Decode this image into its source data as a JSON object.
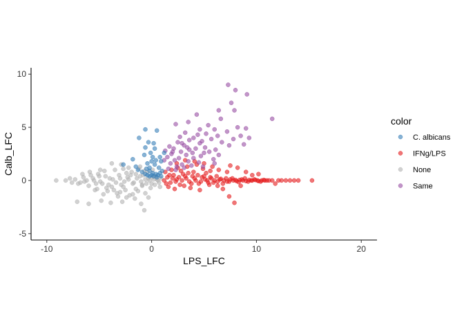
{
  "chart_data": {
    "type": "scatter",
    "title": "",
    "xlabel": "LPS_LFC",
    "ylabel": "Calb_LFC",
    "xlim": [
      -11.5,
      21.5
    ],
    "ylim": [
      -5.6,
      10.6
    ],
    "xticks": [
      -10,
      0,
      10,
      20
    ],
    "yticks": [
      -5,
      0,
      5,
      10
    ],
    "xtick_labels": [
      "-10",
      "0",
      "10",
      "20"
    ],
    "ytick_labels": [
      "-5",
      "0",
      "5",
      "10"
    ],
    "grid": false,
    "legend": {
      "title": "color",
      "placement": "right",
      "entries": [
        "C. albicans",
        "IFNg/LPS",
        "None",
        "Same"
      ]
    },
    "point_opacity": 0.6,
    "series": [
      {
        "name": "C. albicans",
        "color": "#377EB8",
        "points": [
          [
            -0.6,
            4.8
          ],
          [
            0.5,
            4.7
          ],
          [
            -1.2,
            4.0
          ],
          [
            -0.3,
            3.6
          ],
          [
            0.3,
            3.0
          ],
          [
            -0.7,
            2.4
          ],
          [
            -1.8,
            2.0
          ],
          [
            -1.5,
            1.3
          ],
          [
            -1.3,
            1.0
          ],
          [
            -0.4,
            1.6
          ],
          [
            0.0,
            1.8
          ],
          [
            -0.1,
            2.6
          ],
          [
            -0.6,
            3.1
          ],
          [
            0.2,
            3.5
          ],
          [
            -0.2,
            1.2
          ],
          [
            -0.2,
            0.9
          ],
          [
            -0.5,
            1.1
          ],
          [
            0.3,
            1.5
          ],
          [
            0.4,
            1.9
          ],
          [
            0.7,
            1.2
          ],
          [
            0.9,
            1.8
          ],
          [
            -2.7,
            1.5
          ],
          [
            -0.9,
            0.8
          ],
          [
            -0.6,
            0.6
          ],
          [
            -0.4,
            0.5
          ],
          [
            -0.2,
            0.4
          ],
          [
            0.0,
            0.5
          ],
          [
            0.2,
            0.4
          ],
          [
            0.4,
            0.6
          ],
          [
            0.6,
            0.5
          ],
          [
            0.8,
            0.7
          ],
          [
            0.1,
            0.7
          ],
          [
            0.9,
            0.4
          ],
          [
            0.5,
            0.3
          ],
          [
            1.0,
            0.9
          ],
          [
            1.2,
            2.6
          ],
          [
            0.8,
            2.2
          ],
          [
            0.1,
            2.2
          ]
        ]
      },
      {
        "name": "IFNg/LPS",
        "color": "#E41A1C",
        "points": [
          [
            1.2,
            0.0
          ],
          [
            1.5,
            0.3
          ],
          [
            1.8,
            -0.2
          ],
          [
            2.1,
            0.5
          ],
          [
            2.4,
            0.1
          ],
          [
            2.7,
            -0.4
          ],
          [
            3.0,
            0.6
          ],
          [
            3.3,
            0.2
          ],
          [
            3.6,
            -0.1
          ],
          [
            3.9,
            0.4
          ],
          [
            4.2,
            0.0
          ],
          [
            4.5,
            -0.3
          ],
          [
            4.8,
            0.3
          ],
          [
            5.1,
            0.1
          ],
          [
            5.4,
            -0.2
          ],
          [
            5.7,
            0.2
          ],
          [
            6.0,
            0.0
          ],
          [
            6.3,
            -0.1
          ],
          [
            6.6,
            0.15
          ],
          [
            6.9,
            0.0
          ],
          [
            7.2,
            -0.1
          ],
          [
            7.5,
            0.1
          ],
          [
            7.8,
            0.0
          ],
          [
            8.1,
            -0.05
          ],
          [
            8.4,
            0.05
          ],
          [
            8.7,
            0.0
          ],
          [
            9.0,
            -0.05
          ],
          [
            9.3,
            0.05
          ],
          [
            9.6,
            0.0
          ],
          [
            9.9,
            0.05
          ],
          [
            10.2,
            -0.05
          ],
          [
            10.5,
            0.0
          ],
          [
            10.8,
            0.0
          ],
          [
            11.2,
            0.0
          ],
          [
            12.4,
            0.0
          ],
          [
            12.8,
            0.0
          ],
          [
            13.2,
            0.0
          ],
          [
            13.6,
            0.0
          ],
          [
            14.0,
            0.0
          ],
          [
            15.3,
            0.0
          ],
          [
            1.3,
            0.8
          ],
          [
            1.6,
            -0.6
          ],
          [
            1.9,
            1.0
          ],
          [
            2.2,
            -0.8
          ],
          [
            2.5,
            1.2
          ],
          [
            2.8,
            0.9
          ],
          [
            3.1,
            -0.5
          ],
          [
            3.4,
            1.3
          ],
          [
            3.7,
            -0.7
          ],
          [
            4.0,
            0.8
          ],
          [
            4.3,
            1.5
          ],
          [
            4.6,
            -0.9
          ],
          [
            4.9,
            1.1
          ],
          [
            5.2,
            0.7
          ],
          [
            5.5,
            -0.4
          ],
          [
            1.4,
            -0.3
          ],
          [
            1.7,
            0.5
          ],
          [
            2.0,
            0.2
          ],
          [
            2.3,
            -0.1
          ],
          [
            2.6,
            0.3
          ],
          [
            2.9,
            0.0
          ],
          [
            3.2,
            0.4
          ],
          [
            3.5,
            0.7
          ],
          [
            3.8,
            -0.3
          ],
          [
            4.1,
            0.2
          ],
          [
            4.4,
            0.5
          ],
          [
            4.7,
            -0.1
          ],
          [
            5.0,
            0.4
          ],
          [
            5.3,
            0.0
          ],
          [
            5.6,
            0.3
          ],
          [
            5.9,
            -0.2
          ],
          [
            6.2,
            0.4
          ],
          [
            6.5,
            0.1
          ],
          [
            6.8,
            -0.3
          ],
          [
            7.1,
            0.2
          ],
          [
            7.4,
            -0.1
          ],
          [
            7.7,
            0.2
          ],
          [
            8.0,
            0.05
          ],
          [
            8.3,
            -0.15
          ],
          [
            8.6,
            0.1
          ],
          [
            8.9,
            0.2
          ],
          [
            9.2,
            -0.1
          ],
          [
            9.5,
            0.0
          ],
          [
            9.8,
            0.1
          ],
          [
            10.1,
            0.0
          ],
          [
            10.4,
            -0.1
          ],
          [
            10.7,
            0.05
          ],
          [
            11.0,
            0.0
          ],
          [
            11.5,
            0.0
          ],
          [
            12.1,
            0.0
          ],
          [
            2.4,
            1.6
          ],
          [
            3.2,
            1.9
          ],
          [
            4.1,
            1.8
          ],
          [
            5.0,
            1.6
          ],
          [
            5.8,
            1.3
          ],
          [
            6.4,
            1.0
          ],
          [
            7.5,
            1.4
          ],
          [
            8.2,
            1.2
          ],
          [
            9.0,
            0.8
          ],
          [
            10.2,
            0.6
          ],
          [
            11.8,
            -0.3
          ],
          [
            7.4,
            -1.5
          ],
          [
            7.9,
            -2.1
          ],
          [
            6.8,
            -0.8
          ],
          [
            7.2,
            0.8
          ],
          [
            6.3,
            -0.5
          ],
          [
            5.6,
            0.9
          ],
          [
            8.5,
            -0.5
          ],
          [
            9.6,
            0.5
          ]
        ]
      },
      {
        "name": "None",
        "color": "#B3B3B3",
        "points": [
          [
            -9.1,
            0.0
          ],
          [
            -7.3,
            0.1
          ],
          [
            -6.8,
            -0.2
          ],
          [
            -6.5,
            0.3
          ],
          [
            -6.0,
            -0.5
          ],
          [
            -5.8,
            0.5
          ],
          [
            -5.5,
            0.0
          ],
          [
            -5.2,
            -0.8
          ],
          [
            -5.0,
            0.4
          ],
          [
            -4.7,
            -0.3
          ],
          [
            -4.5,
            0.9
          ],
          [
            -4.2,
            -1.0
          ],
          [
            -4.0,
            0.2
          ],
          [
            -3.8,
            -0.6
          ],
          [
            -3.5,
            1.0
          ],
          [
            -3.3,
            -1.2
          ],
          [
            -3.1,
            0.5
          ],
          [
            -2.9,
            -0.4
          ],
          [
            -2.7,
            1.1
          ],
          [
            -2.5,
            -0.9
          ],
          [
            -2.3,
            0.3
          ],
          [
            -2.1,
            -1.4
          ],
          [
            -1.9,
            0.8
          ],
          [
            -1.7,
            -0.2
          ],
          [
            -1.5,
            0.6
          ],
          [
            -1.3,
            -1.0
          ],
          [
            -1.1,
            0.4
          ],
          [
            -0.9,
            -0.5
          ],
          [
            -0.7,
            0.9
          ],
          [
            -0.5,
            -0.3
          ],
          [
            -0.3,
            0.2
          ],
          [
            -0.1,
            -0.7
          ],
          [
            0.1,
            0.3
          ],
          [
            0.3,
            -0.4
          ],
          [
            0.5,
            0.1
          ],
          [
            0.7,
            -0.2
          ],
          [
            0.9,
            0.2
          ],
          [
            -6.2,
            0.0
          ],
          [
            -5.6,
            0.2
          ],
          [
            -5.3,
            -0.3
          ],
          [
            -4.9,
            -0.1
          ],
          [
            -4.4,
            0.4
          ],
          [
            -4.1,
            -0.4
          ],
          [
            -3.7,
            0.1
          ],
          [
            -3.4,
            -0.2
          ],
          [
            -3.0,
            0.2
          ],
          [
            -2.6,
            -0.1
          ],
          [
            -2.2,
            0.1
          ],
          [
            -1.8,
            -0.3
          ],
          [
            -1.4,
            0.2
          ],
          [
            -1.0,
            -0.1
          ],
          [
            -0.6,
            0.1
          ],
          [
            -0.2,
            0.0
          ],
          [
            0.2,
            0.1
          ],
          [
            0.6,
            0.0
          ],
          [
            -7.1,
            -2.0
          ],
          [
            -6.0,
            -2.2
          ],
          [
            -4.8,
            -1.9
          ],
          [
            -3.9,
            -2.1
          ],
          [
            -2.8,
            -2.0
          ],
          [
            -1.6,
            -1.7
          ],
          [
            -0.6,
            -1.2
          ],
          [
            -0.7,
            -2.8
          ],
          [
            -1.0,
            -2.2
          ],
          [
            -2.4,
            -1.6
          ],
          [
            -3.2,
            -1.5
          ],
          [
            -4.6,
            -1.3
          ],
          [
            -5.4,
            -0.9
          ],
          [
            -3.8,
            1.6
          ],
          [
            -2.9,
            1.5
          ],
          [
            -2.2,
            1.2
          ],
          [
            -1.2,
            1.1
          ],
          [
            -0.4,
            0.8
          ],
          [
            -4.9,
            1.0
          ],
          [
            -5.9,
            0.8
          ],
          [
            -6.6,
            0.6
          ],
          [
            -7.8,
            0.2
          ],
          [
            -8.2,
            0.0
          ],
          [
            -7.6,
            -0.2
          ],
          [
            -7.0,
            -0.3
          ],
          [
            -6.4,
            -0.1
          ],
          [
            -5.1,
            0.6
          ],
          [
            -3.6,
            -0.9
          ],
          [
            -2.4,
            0.7
          ],
          [
            -1.5,
            -0.8
          ],
          [
            -0.8,
            0.5
          ],
          [
            0.0,
            -0.3
          ],
          [
            0.4,
            0.4
          ],
          [
            0.8,
            -0.6
          ],
          [
            -3.0,
            -1.1
          ],
          [
            -1.8,
            -1.3
          ],
          [
            -4.3,
            -0.7
          ],
          [
            -2.0,
            0.5
          ],
          [
            -0.9,
            -0.4
          ],
          [
            -1.1,
            1.3
          ],
          [
            0.1,
            1.0
          ],
          [
            -0.3,
            -1.6
          ],
          [
            -2.7,
            -0.6
          ]
        ]
      },
      {
        "name": "Same",
        "color": "#984EA3",
        "points": [
          [
            7.3,
            9.0
          ],
          [
            8.0,
            8.5
          ],
          [
            9.1,
            8.1
          ],
          [
            7.6,
            7.3
          ],
          [
            7.9,
            6.6
          ],
          [
            6.4,
            6.6
          ],
          [
            4.3,
            6.2
          ],
          [
            6.6,
            5.8
          ],
          [
            11.5,
            5.8
          ],
          [
            3.5,
            5.5
          ],
          [
            2.3,
            5.3
          ],
          [
            5.4,
            5.2
          ],
          [
            8.2,
            5.0
          ],
          [
            4.6,
            4.8
          ],
          [
            6.0,
            4.8
          ],
          [
            9.0,
            4.9
          ],
          [
            7.2,
            4.6
          ],
          [
            3.2,
            4.5
          ],
          [
            5.2,
            4.4
          ],
          [
            8.5,
            4.2
          ],
          [
            2.7,
            4.1
          ],
          [
            6.3,
            4.2
          ],
          [
            4.0,
            4.0
          ],
          [
            7.8,
            3.9
          ],
          [
            9.3,
            4.0
          ],
          [
            3.6,
            3.8
          ],
          [
            5.7,
            3.9
          ],
          [
            2.5,
            3.6
          ],
          [
            4.6,
            3.5
          ],
          [
            6.7,
            3.6
          ],
          [
            8.8,
            3.4
          ],
          [
            1.7,
            3.2
          ],
          [
            3.1,
            3.3
          ],
          [
            5.1,
            3.1
          ],
          [
            7.4,
            3.3
          ],
          [
            2.1,
            3.0
          ],
          [
            4.2,
            3.0
          ],
          [
            6.1,
            2.9
          ],
          [
            1.3,
            2.8
          ],
          [
            2.8,
            2.7
          ],
          [
            3.9,
            2.6
          ],
          [
            5.5,
            2.7
          ],
          [
            1.9,
            2.5
          ],
          [
            3.3,
            2.4
          ],
          [
            4.7,
            2.3
          ],
          [
            6.4,
            2.4
          ],
          [
            1.5,
            2.2
          ],
          [
            2.6,
            2.1
          ],
          [
            4.0,
            2.1
          ],
          [
            5.9,
            2.0
          ],
          [
            2.2,
            1.9
          ],
          [
            3.5,
            1.8
          ],
          [
            4.5,
            1.7
          ],
          [
            1.8,
            1.6
          ],
          [
            2.9,
            1.5
          ],
          [
            3.8,
            1.4
          ],
          [
            2.4,
            1.3
          ],
          [
            3.1,
            1.2
          ],
          [
            1.6,
            1.1
          ],
          [
            4.9,
            1.3
          ],
          [
            3.6,
            2.9
          ],
          [
            2.0,
            2.7
          ],
          [
            2.9,
            3.5
          ],
          [
            4.4,
            4.3
          ],
          [
            5.0,
            2.6
          ],
          [
            1.2,
            1.9
          ],
          [
            6.0,
            1.6
          ],
          [
            2.3,
            1.0
          ],
          [
            4.8,
            3.7
          ],
          [
            3.4,
            3.1
          ]
        ]
      }
    ]
  }
}
